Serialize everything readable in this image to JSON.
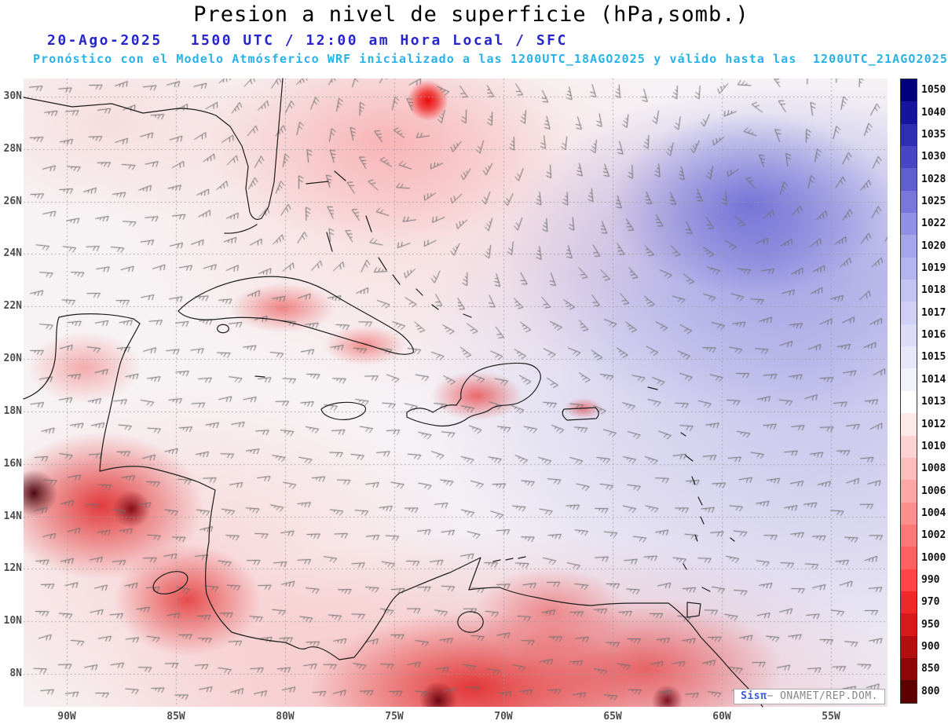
{
  "header": {
    "title": "Presion a nivel de superficie (hPa,somb.)",
    "date": "20-Ago-2025",
    "time": "1500 UTC / 12:00 am Hora Local / SFC",
    "forecast": "Pronóstico con el Modelo Atmósferico WRF inicializado a las 1200UTC_18AGO2025 y válido hasta las  1200UTC_21AGO2025"
  },
  "map": {
    "lat_labels": [
      "30N",
      "28N",
      "26N",
      "24N",
      "22N",
      "20N",
      "18N",
      "16N",
      "14N",
      "12N",
      "10N",
      "8N"
    ],
    "lon_labels": [
      "90W",
      "85W",
      "80W",
      "75W",
      "70W",
      "65W",
      "60W",
      "55W"
    ]
  },
  "colorbar": {
    "unit": "hPa",
    "values": [
      "1050",
      "1040",
      "1035",
      "1030",
      "1028",
      "1025",
      "1022",
      "1020",
      "1019",
      "1018",
      "1017",
      "1016",
      "1015",
      "1014",
      "1013",
      "1012",
      "1010",
      "1008",
      "1006",
      "1004",
      "1002",
      "1000",
      "990",
      "970",
      "950",
      "900",
      "850",
      "800"
    ],
    "colors": [
      "#00007e",
      "#14149e",
      "#2e2eb4",
      "#4646c6",
      "#5f5fd2",
      "#7878dc",
      "#9090e6",
      "#a5a5ec",
      "#b4b4f0",
      "#c3c3f4",
      "#d0d0f6",
      "#dcdcf8",
      "#e7e7fa",
      "#f2f2fd",
      "#ffffff",
      "#ffe8e8",
      "#ffd2d2",
      "#ffbcbc",
      "#ffa6a6",
      "#ff8f8f",
      "#ff7878",
      "#ff6060",
      "#ff4545",
      "#ef2828",
      "#d61a1a",
      "#b30f0f",
      "#8f0606",
      "#5f0000"
    ]
  },
  "attribution": {
    "brand": "Sisπ",
    "org": "− ONAMET/REP.DOM."
  },
  "colors": {
    "title": "#000000",
    "date_line": "#2626cc",
    "forecast_line": "#29b2e8",
    "axis_labels": "#4d4d4d",
    "wind_barbs": "#6f6f6f",
    "graticule": "#9b9b9b",
    "coastline": "#1c1c1c"
  }
}
